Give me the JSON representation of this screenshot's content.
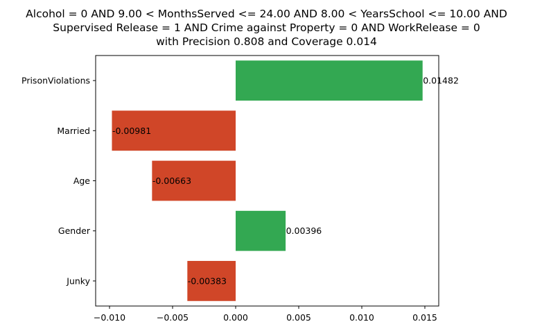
{
  "chart_data": {
    "type": "bar",
    "orientation": "horizontal",
    "title": [
      "Alcohol = 0 AND 9.00 < MonthsServed <= 24.00 AND 8.00 < YearsSchool <= 10.00 AND",
      "Supervised Release = 1 AND Crime against Property = 0 AND WorkRelease = 0",
      "with Precision 0.808 and Coverage 0.014"
    ],
    "categories": [
      "PrisonViolations",
      "Married",
      "Age",
      "Gender",
      "Junky"
    ],
    "values": [
      0.01482,
      -0.00981,
      -0.00663,
      0.00396,
      -0.00383
    ],
    "value_labels": [
      "0.01482",
      "-0.00981",
      "-0.00663",
      "0.00396",
      "-0.00383"
    ],
    "xlim": [
      -0.0111,
      0.0161
    ],
    "xticks": [
      -0.01,
      -0.005,
      0.0,
      0.005,
      0.01,
      0.015
    ],
    "xtick_labels": [
      "−0.010",
      "−0.005",
      "0.000",
      "0.005",
      "0.010",
      "0.015"
    ],
    "xlabel": "",
    "ylabel": "",
    "grid": false,
    "colors": {
      "positive": "#33a852",
      "negative": "#d04628"
    }
  }
}
